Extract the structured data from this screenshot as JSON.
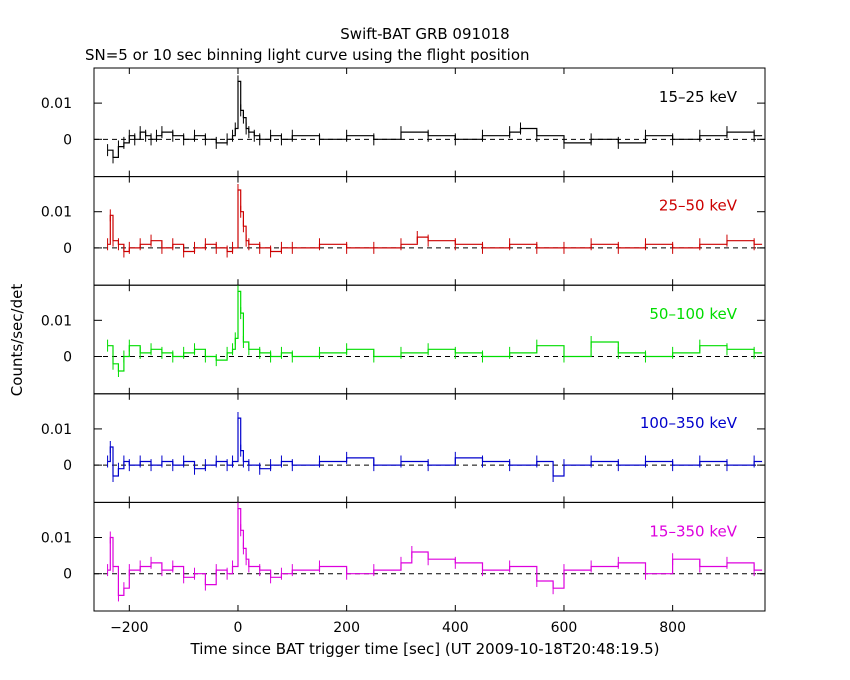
{
  "title": "Swift-BAT GRB 091018",
  "subtitle": "SN=5 or 10 sec binning light curve using the flight position",
  "chart_data": {
    "type": "line",
    "xlabel": "Time since BAT trigger time [sec] (UT 2009-10-18T20:48:19.5)",
    "ylabel": "Counts/sec/det",
    "xlim": [
      -265,
      970
    ],
    "x_ticks": [
      -200,
      0,
      200,
      400,
      600,
      800
    ],
    "x_tick_labels": [
      "−200",
      "0",
      "200",
      "400",
      "600",
      "800"
    ],
    "y_tick_labels": [
      "0",
      "0.01"
    ],
    "panels": [
      {
        "name": "15–25 keV",
        "color": "#000000",
        "ylim": [
          -0.0103,
          0.0197
        ],
        "x": [
          -240,
          -230,
          -220,
          -210,
          -200,
          -190,
          -180,
          -170,
          -160,
          -150,
          -140,
          -120,
          -100,
          -80,
          -60,
          -40,
          -20,
          -10,
          -5,
          0,
          5,
          10,
          15,
          20,
          30,
          40,
          60,
          80,
          100,
          150,
          200,
          250,
          300,
          350,
          400,
          450,
          500,
          520,
          550,
          600,
          650,
          700,
          750,
          800,
          850,
          900,
          950
        ],
        "values": [
          -0.003,
          -0.005,
          -0.002,
          -0.001,
          0.001,
          0.0,
          0.002,
          0.001,
          0.0,
          0.001,
          0.002,
          0.001,
          0.0,
          0.001,
          0.0,
          -0.001,
          0.0,
          0.001,
          0.003,
          0.016,
          0.008,
          0.006,
          0.003,
          0.002,
          0.001,
          0.0,
          0.001,
          0.0,
          0.001,
          0.0,
          0.001,
          0.0,
          0.002,
          0.001,
          0.0,
          0.001,
          0.002,
          0.003,
          0.001,
          -0.001,
          0.0,
          -0.001,
          0.001,
          0.0,
          0.001,
          0.002,
          0.001
        ]
      },
      {
        "name": "25–50 keV",
        "color": "#cc0000",
        "ylim": [
          -0.0103,
          0.0197
        ],
        "x": [
          -240,
          -235,
          -230,
          -220,
          -210,
          -200,
          -180,
          -160,
          -140,
          -120,
          -100,
          -80,
          -60,
          -40,
          -20,
          -10,
          0,
          5,
          10,
          15,
          20,
          40,
          60,
          80,
          100,
          150,
          200,
          250,
          300,
          330,
          350,
          400,
          450,
          500,
          550,
          600,
          650,
          700,
          750,
          800,
          850,
          900,
          950
        ],
        "values": [
          0.001,
          0.009,
          0.002,
          0.001,
          -0.001,
          0.0,
          0.001,
          0.002,
          0.0,
          0.001,
          -0.001,
          0.0,
          0.001,
          0.0,
          -0.001,
          0.0,
          0.016,
          0.01,
          0.006,
          0.002,
          0.001,
          0.0,
          -0.001,
          0.0,
          0.0,
          0.001,
          0.0,
          0.0,
          0.001,
          0.003,
          0.002,
          0.001,
          0.0,
          0.001,
          0.0,
          0.0,
          0.001,
          0.0,
          0.001,
          0.0,
          0.001,
          0.002,
          0.001
        ]
      },
      {
        "name": "50–100 keV",
        "color": "#00dd00",
        "ylim": [
          -0.0103,
          0.0197
        ],
        "x": [
          -240,
          -230,
          -220,
          -210,
          -200,
          -180,
          -160,
          -140,
          -120,
          -100,
          -80,
          -60,
          -40,
          -20,
          -10,
          -5,
          0,
          5,
          10,
          20,
          40,
          60,
          80,
          100,
          150,
          200,
          250,
          300,
          350,
          400,
          450,
          500,
          550,
          600,
          650,
          700,
          750,
          800,
          850,
          900,
          950
        ],
        "values": [
          0.003,
          -0.002,
          -0.004,
          0.0,
          0.003,
          0.001,
          0.002,
          0.001,
          0.0,
          0.001,
          0.002,
          0.0,
          -0.001,
          0.001,
          0.002,
          0.005,
          0.018,
          0.012,
          0.004,
          0.002,
          0.001,
          0.0,
          0.001,
          0.0,
          0.001,
          0.002,
          0.0,
          0.001,
          0.002,
          0.001,
          0.0,
          0.001,
          0.003,
          0.0,
          0.004,
          0.001,
          0.0,
          0.001,
          0.003,
          0.002,
          0.001
        ]
      },
      {
        "name": "100–350 keV",
        "color": "#0000cc",
        "ylim": [
          -0.0103,
          0.0197
        ],
        "x": [
          -240,
          -235,
          -230,
          -220,
          -210,
          -200,
          -180,
          -160,
          -140,
          -120,
          -100,
          -80,
          -60,
          -40,
          -20,
          -10,
          0,
          5,
          10,
          20,
          40,
          60,
          80,
          100,
          150,
          200,
          250,
          300,
          350,
          400,
          450,
          500,
          550,
          580,
          600,
          650,
          700,
          750,
          800,
          850,
          900,
          950
        ],
        "values": [
          0.001,
          0.005,
          -0.003,
          -0.001,
          0.001,
          0.0,
          0.001,
          0.0,
          0.001,
          0.0,
          0.001,
          -0.001,
          0.0,
          0.001,
          0.0,
          0.001,
          0.013,
          0.004,
          0.001,
          0.0,
          -0.001,
          0.0,
          0.001,
          0.0,
          0.001,
          0.002,
          0.0,
          0.001,
          0.0,
          0.002,
          0.001,
          0.0,
          0.001,
          -0.003,
          0.0,
          0.001,
          0.0,
          0.001,
          0.0,
          0.001,
          0.0,
          0.001
        ]
      },
      {
        "name": "15–350 keV",
        "color": "#dd00dd",
        "ylim": [
          -0.0103,
          0.0197
        ],
        "x": [
          -240,
          -235,
          -230,
          -220,
          -210,
          -200,
          -180,
          -160,
          -140,
          -120,
          -100,
          -80,
          -60,
          -40,
          -20,
          -10,
          0,
          5,
          10,
          15,
          20,
          40,
          60,
          80,
          100,
          150,
          200,
          250,
          300,
          320,
          350,
          400,
          450,
          500,
          550,
          580,
          600,
          650,
          700,
          750,
          800,
          850,
          900,
          950
        ],
        "values": [
          0.001,
          0.01,
          0.002,
          -0.006,
          -0.004,
          0.001,
          0.002,
          0.003,
          0.001,
          0.002,
          -0.001,
          0.0,
          -0.003,
          0.001,
          0.0,
          0.002,
          0.018,
          0.012,
          0.007,
          0.004,
          0.002,
          0.001,
          -0.001,
          0.0,
          0.001,
          0.002,
          0.0,
          0.001,
          0.003,
          0.006,
          0.004,
          0.003,
          0.001,
          0.002,
          -0.002,
          -0.004,
          0.001,
          0.002,
          0.003,
          0.0,
          0.004,
          0.002,
          0.003,
          0.001
        ]
      }
    ]
  }
}
